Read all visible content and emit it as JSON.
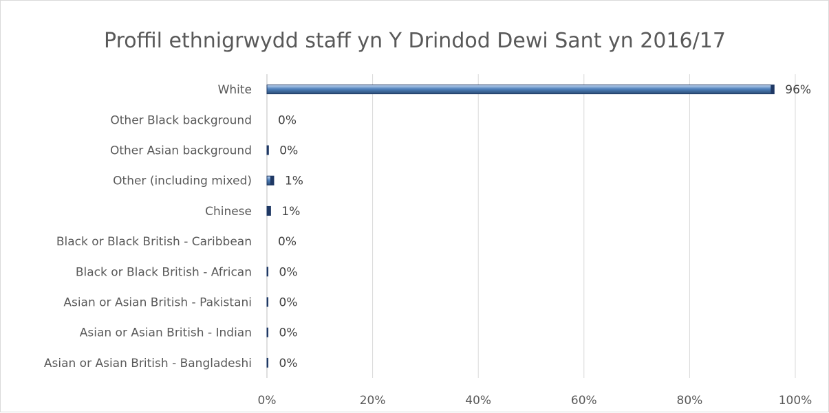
{
  "chart_data": {
    "type": "bar",
    "orientation": "horizontal",
    "title": "Proffil ethnigrwydd staff yn Y Drindod Dewi Sant yn 2016/17",
    "categories": [
      "White",
      "Other Black background",
      "Other Asian background",
      "Other (including mixed)",
      "Chinese",
      "Black or Black British - Caribbean",
      "Black or Black British - African",
      "Asian or Asian British - Pakistani",
      "Asian or Asian British - Indian",
      "Asian or Asian British - Bangladeshi"
    ],
    "values": [
      0.96,
      0.0,
      0.003,
      0.013,
      0.007,
      0.0,
      0.002,
      0.002,
      0.002,
      0.002
    ],
    "data_labels": [
      "96%",
      "0%",
      "0%",
      "1%",
      "1%",
      "0%",
      "0%",
      "0%",
      "0%",
      "0%"
    ],
    "xlim": [
      0,
      1
    ],
    "x_ticks": [
      0,
      0.2,
      0.4,
      0.6,
      0.8,
      1.0
    ],
    "x_tick_labels": [
      "0%",
      "20%",
      "40%",
      "60%",
      "80%",
      "100%"
    ],
    "xlabel": "",
    "ylabel": "",
    "grid": "vertical",
    "legend": "none",
    "colors": {
      "bar": "#4f81bd",
      "bar_dark": "#1f3864",
      "bar_light": "#b8cce4",
      "grid": "#d9d9d9",
      "text": "#595959"
    }
  }
}
